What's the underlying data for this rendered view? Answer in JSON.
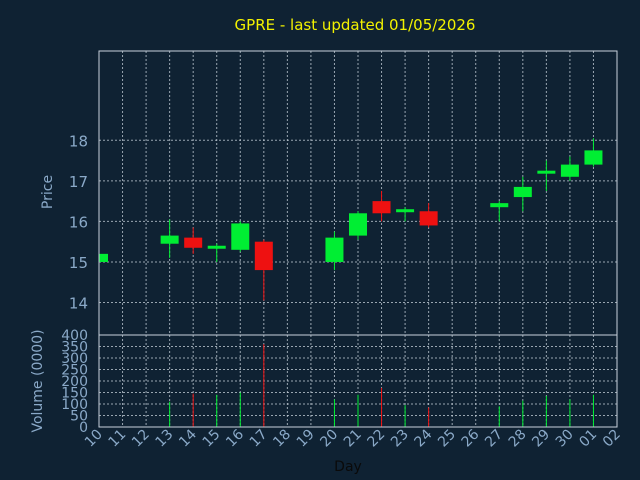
{
  "title": "GPRE - last updated 01/05/2026",
  "colors": {
    "background": "#0f2233",
    "title": "#f2f200",
    "axis_text": "#8aa9c8",
    "grid": "#c8d2dc",
    "frame": "#c8d2dc",
    "up": "#00ee33",
    "down": "#ee1111"
  },
  "chart_data": [
    {
      "type": "candlestick",
      "ylabel": "Price",
      "ylim": [
        13.2,
        20.2
      ],
      "yticks": [
        14,
        15,
        16,
        17,
        18
      ],
      "grid": true,
      "candles": [
        {
          "x": "10",
          "open": 15.0,
          "high": 15.2,
          "low": 15.0,
          "close": 15.2
        },
        {
          "x": "13",
          "open": 15.45,
          "high": 16.05,
          "low": 15.1,
          "close": 15.65
        },
        {
          "x": "14",
          "open": 15.6,
          "high": 15.85,
          "low": 15.2,
          "close": 15.35
        },
        {
          "x": "15",
          "open": 15.35,
          "high": 15.45,
          "low": 15.0,
          "close": 15.4
        },
        {
          "x": "16",
          "open": 15.3,
          "high": 16.0,
          "low": 15.25,
          "close": 15.95
        },
        {
          "x": "17",
          "open": 15.5,
          "high": 15.55,
          "low": 14.05,
          "close": 14.8
        },
        {
          "x": "20",
          "open": 15.0,
          "high": 15.75,
          "low": 14.8,
          "close": 15.6
        },
        {
          "x": "21",
          "open": 15.65,
          "high": 16.25,
          "low": 15.55,
          "close": 16.2
        },
        {
          "x": "22",
          "open": 16.5,
          "high": 16.75,
          "low": 16.0,
          "close": 16.2
        },
        {
          "x": "23",
          "open": 16.25,
          "high": 16.35,
          "low": 16.0,
          "close": 16.3
        },
        {
          "x": "24",
          "open": 16.25,
          "high": 16.45,
          "low": 15.85,
          "close": 15.9
        },
        {
          "x": "27",
          "open": 16.35,
          "high": 16.5,
          "low": 16.0,
          "close": 16.45
        },
        {
          "x": "28",
          "open": 16.6,
          "high": 17.1,
          "low": 16.25,
          "close": 16.85
        },
        {
          "x": "29",
          "open": 17.2,
          "high": 17.5,
          "low": 16.75,
          "close": 17.25
        },
        {
          "x": "30",
          "open": 17.1,
          "high": 17.6,
          "low": 17.0,
          "close": 17.4
        },
        {
          "x": "01",
          "open": 17.4,
          "high": 18.05,
          "low": 17.35,
          "close": 17.75
        }
      ]
    },
    {
      "type": "bar",
      "xlabel": "Day",
      "ylabel": "Volume (0000)",
      "ylim": [
        0,
        400
      ],
      "yticks": [
        0,
        50,
        100,
        150,
        200,
        250,
        300,
        350,
        400
      ],
      "grid": true,
      "categories": [
        "10",
        "11",
        "12",
        "13",
        "14",
        "15",
        "16",
        "17",
        "18",
        "19",
        "20",
        "21",
        "22",
        "23",
        "24",
        "25",
        "26",
        "27",
        "28",
        "29",
        "30",
        "01",
        "02"
      ],
      "values": [
        {
          "x": "10",
          "value": 0,
          "dir": "up"
        },
        {
          "x": "13",
          "value": 110,
          "dir": "up"
        },
        {
          "x": "14",
          "value": 145,
          "dir": "down"
        },
        {
          "x": "15",
          "value": 140,
          "dir": "up"
        },
        {
          "x": "16",
          "value": 150,
          "dir": "up"
        },
        {
          "x": "17",
          "value": 360,
          "dir": "down"
        },
        {
          "x": "20",
          "value": 120,
          "dir": "up"
        },
        {
          "x": "21",
          "value": 140,
          "dir": "up"
        },
        {
          "x": "22",
          "value": 170,
          "dir": "down"
        },
        {
          "x": "23",
          "value": 95,
          "dir": "up"
        },
        {
          "x": "24",
          "value": 85,
          "dir": "down"
        },
        {
          "x": "27",
          "value": 90,
          "dir": "up"
        },
        {
          "x": "28",
          "value": 115,
          "dir": "up"
        },
        {
          "x": "29",
          "value": 135,
          "dir": "up"
        },
        {
          "x": "30",
          "value": 120,
          "dir": "up"
        },
        {
          "x": "01",
          "value": 140,
          "dir": "up"
        }
      ]
    }
  ]
}
